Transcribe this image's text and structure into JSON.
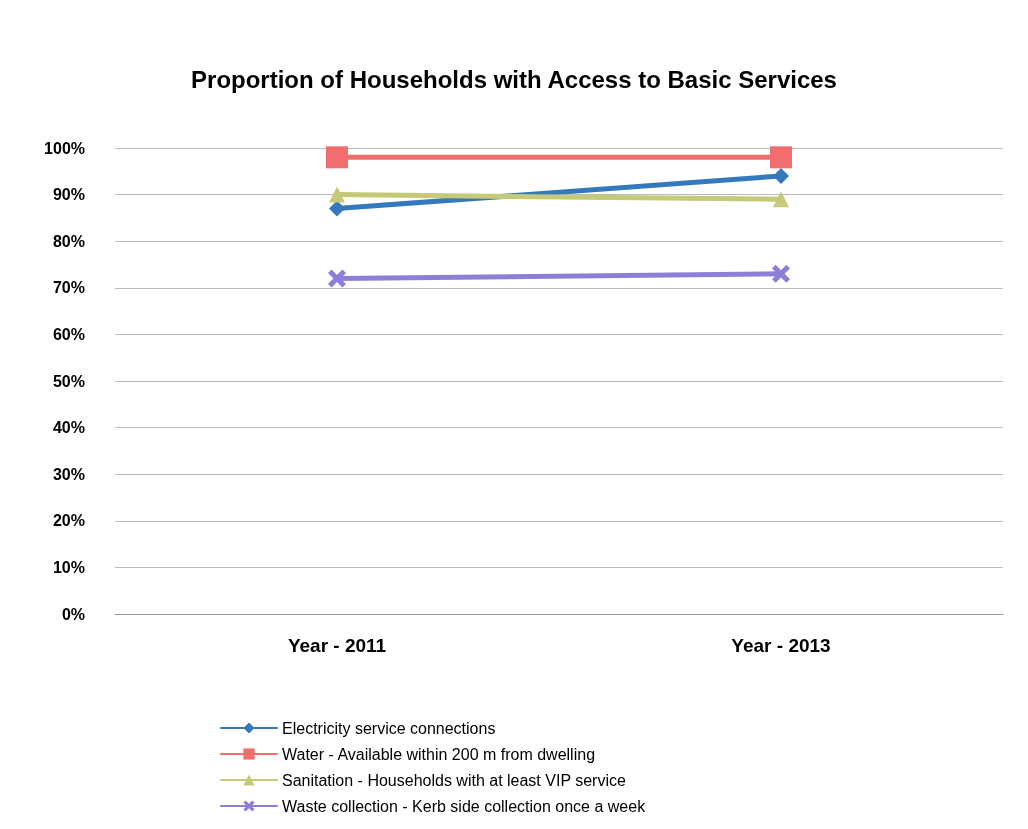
{
  "chart_data": {
    "type": "line",
    "title": "Proportion of Households with Access to Basic Services",
    "categories": [
      "Year - 2011",
      "Year - 2013"
    ],
    "series": [
      {
        "name": "Electricity service connections",
        "color": "#3579bd",
        "marker": "diamond",
        "values": [
          87,
          94
        ]
      },
      {
        "name": "Water - Available within 200 m from dwelling",
        "color": "#f26d6d",
        "marker": "square",
        "values": [
          98,
          98
        ]
      },
      {
        "name": "Sanitation - Households with at least VIP service",
        "color": "#c6c978",
        "marker": "triangle",
        "values": [
          90,
          89
        ]
      },
      {
        "name": "Waste collection - Kerb side collection once a week",
        "color": "#8f7ed8",
        "marker": "cross",
        "values": [
          72,
          73
        ]
      }
    ],
    "ylim": [
      0,
      100
    ],
    "yticks": [
      {
        "value": 0,
        "label": "0%"
      },
      {
        "value": 10,
        "label": "10%"
      },
      {
        "value": 20,
        "label": "20%"
      },
      {
        "value": 30,
        "label": "30%"
      },
      {
        "value": 40,
        "label": "40%"
      },
      {
        "value": 50,
        "label": "50%"
      },
      {
        "value": 60,
        "label": "60%"
      },
      {
        "value": 70,
        "label": "70%"
      },
      {
        "value": 80,
        "label": "80%"
      },
      {
        "value": 90,
        "label": "90%"
      },
      {
        "value": 100,
        "label": "100%"
      }
    ],
    "grid": "y",
    "legend": "bottom",
    "line_style": "solid"
  }
}
